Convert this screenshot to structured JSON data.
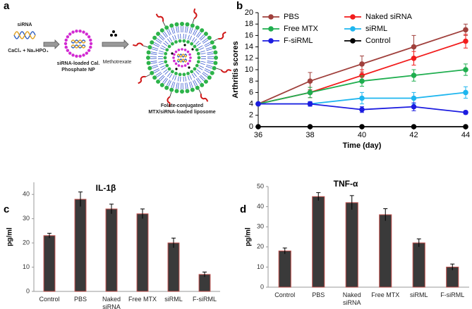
{
  "diagram": {
    "panel": "a",
    "sirna": "siRNA",
    "salts": "CaCl₂ + Na₂HPO₄",
    "nanoparticle": "siRNA-loaded Cal. Phosphate NP",
    "drug": "Methotrexate",
    "liposome": "Folate-conjugated MTX/siRNA-loaded liposome"
  },
  "chart_data": [
    {
      "type": "line",
      "panel": "b",
      "xlabel": "Time (day)",
      "ylabel": "Arthritis scores",
      "x": [
        36,
        38,
        40,
        42,
        44
      ],
      "xlim": [
        36,
        44
      ],
      "xticks": [
        36,
        38,
        40,
        42,
        44
      ],
      "ylim": [
        0,
        20
      ],
      "yticks": [
        0,
        2,
        4,
        6,
        8,
        10,
        12,
        14,
        16,
        18,
        20
      ],
      "legend": "upper left",
      "series": [
        {
          "name": "PBS",
          "color": "#a0403c",
          "values": [
            4,
            8,
            11,
            14,
            17
          ],
          "errors": [
            0,
            1.5,
            1.4,
            2,
            1
          ]
        },
        {
          "name": "Naked siRNA",
          "color": "#f21c1c",
          "values": [
            4,
            6,
            9,
            12,
            15
          ],
          "errors": [
            0,
            0.9,
            1,
            1.2,
            1.2
          ]
        },
        {
          "name": "Free MTX",
          "color": "#1fae4f",
          "values": [
            4,
            6,
            8,
            9,
            10
          ],
          "errors": [
            0,
            0.9,
            0.9,
            1,
            1
          ]
        },
        {
          "name": "siRML",
          "color": "#1eb6ef",
          "values": [
            4,
            4,
            5,
            5,
            6
          ],
          "errors": [
            0,
            0.4,
            1,
            1,
            1
          ]
        },
        {
          "name": "F-siRML",
          "color": "#1c1ce0",
          "values": [
            4,
            4,
            3,
            3.5,
            2.5
          ],
          "errors": [
            0,
            0.4,
            0.5,
            0.7,
            0.3
          ]
        },
        {
          "name": "Control",
          "color": "#000000",
          "values": [
            0,
            0,
            0,
            0,
            0
          ],
          "errors": [
            0,
            0,
            0,
            0,
            0
          ]
        }
      ]
    },
    {
      "type": "bar",
      "panel": "c",
      "title": "IL-1β",
      "ylabel": "pg/ml",
      "categories": [
        "Control",
        "PBS",
        "Naked siRNA",
        "Free MTX",
        "siRML",
        "F-siRML"
      ],
      "values": [
        23,
        38,
        34,
        32,
        20,
        7
      ],
      "errors": [
        1,
        3,
        2,
        2,
        2,
        1
      ],
      "color": "#3a3a3a",
      "edge_color": "#c0504d",
      "ylim": [
        0,
        45
      ],
      "yticks": [
        0,
        10,
        20,
        30,
        40
      ]
    },
    {
      "type": "bar",
      "panel": "d",
      "title": "TNF-α",
      "ylabel": "pg/ml",
      "categories": [
        "Control",
        "PBS",
        "Naked siRNA",
        "Free MTX",
        "siRML",
        "F-siRML"
      ],
      "values": [
        18,
        45,
        42,
        36,
        22,
        10
      ],
      "errors": [
        1.5,
        2,
        3.5,
        3,
        2,
        1.5
      ],
      "color": "#3a3a3a",
      "edge_color": "#c0504d",
      "ylim": [
        0,
        50
      ],
      "yticks": [
        0,
        10,
        20,
        30,
        40,
        50
      ]
    }
  ]
}
